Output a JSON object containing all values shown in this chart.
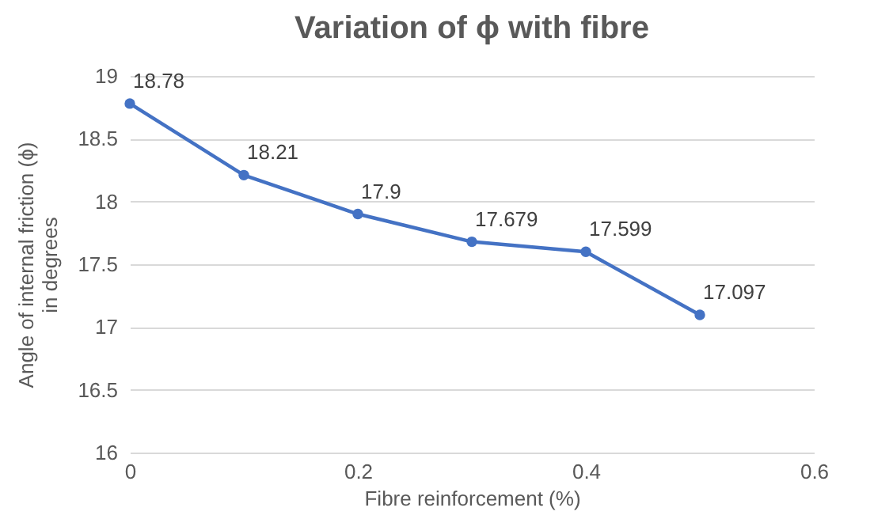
{
  "chart_data": {
    "type": "line",
    "title": "Variation of ϕ with fibre",
    "xlabel": "Fibre reinforcement (%)",
    "ylabel": "Angle of internal friction (ϕ)\nin degrees",
    "x": [
      0,
      0.1,
      0.2,
      0.3,
      0.4,
      0.5
    ],
    "series": [
      {
        "color": "#4472c4",
        "values": [
          18.78,
          18.21,
          17.9,
          17.679,
          17.599,
          17.097
        ]
      }
    ],
    "xlim": [
      0,
      0.6
    ],
    "xticks": [
      0,
      0.2,
      0.4,
      0.6
    ],
    "ylim": [
      16,
      19
    ],
    "yticks": [
      16,
      16.5,
      17,
      17.5,
      18,
      18.5,
      19
    ],
    "grid": "y",
    "marker": "circle",
    "line_style": "solid",
    "data_labels": true,
    "legend": false
  }
}
